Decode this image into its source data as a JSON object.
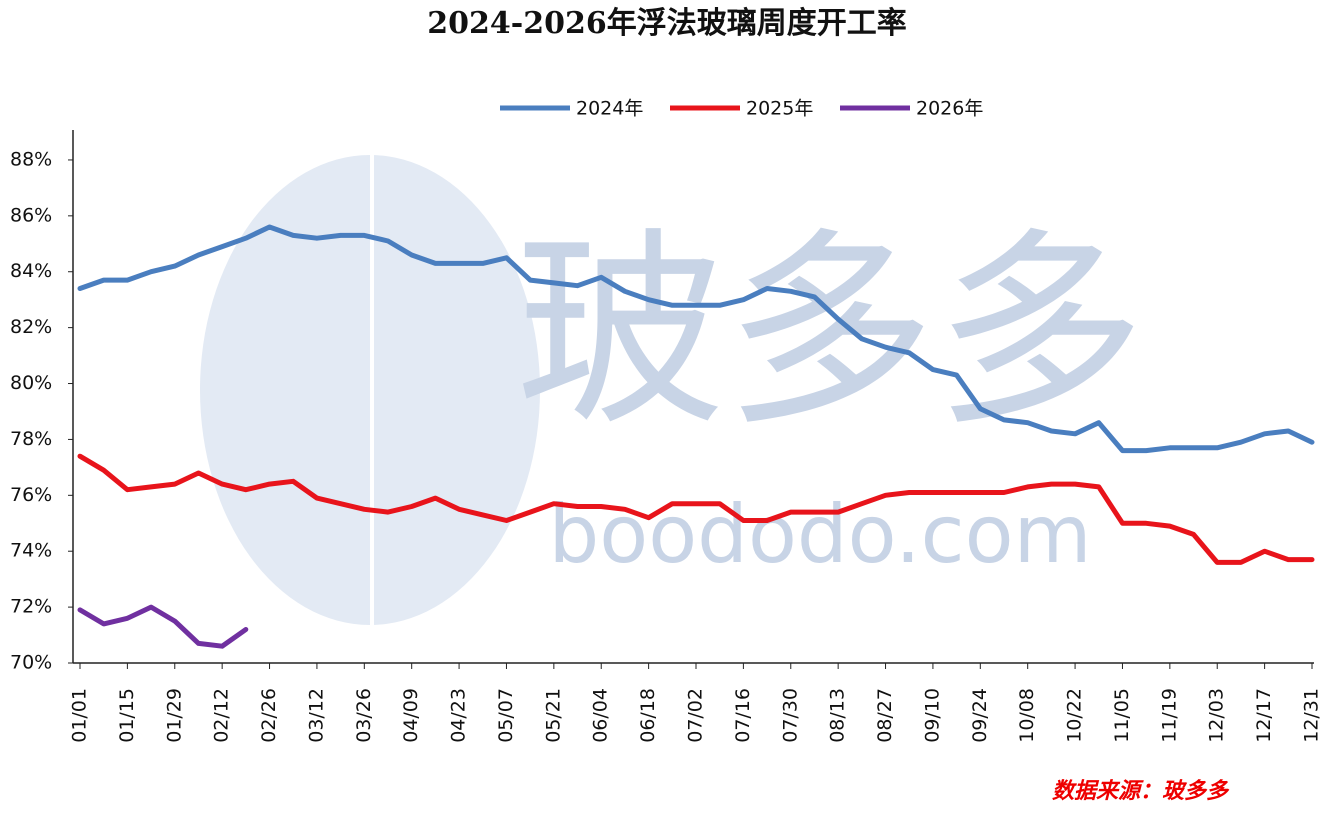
{
  "chart_data": {
    "type": "line",
    "title": "2024-2026年浮法玻璃周度开工率",
    "categories": [
      "01/01",
      null,
      "01/15",
      null,
      "01/29",
      null,
      "02/12",
      null,
      "02/26",
      null,
      "03/12",
      null,
      "03/26",
      null,
      "04/09",
      null,
      "04/23",
      null,
      "05/07",
      null,
      "05/21",
      null,
      "06/04",
      null,
      "06/18",
      null,
      "07/02",
      null,
      "07/16",
      null,
      "07/30",
      null,
      "08/13",
      null,
      "08/27",
      null,
      "09/10",
      null,
      "09/24",
      null,
      "10/08",
      null,
      "10/22",
      null,
      "11/05",
      null,
      "11/19",
      null,
      "12/03",
      null,
      "12/17",
      null,
      "12/31"
    ],
    "series": [
      {
        "name": "2024年",
        "color": "#4a7ebf",
        "values": [
          83.4,
          83.7,
          83.7,
          84.0,
          84.2,
          84.6,
          84.9,
          85.2,
          85.6,
          85.3,
          85.2,
          85.3,
          85.3,
          85.1,
          84.6,
          84.3,
          84.3,
          84.3,
          84.5,
          83.7,
          83.6,
          83.5,
          83.8,
          83.3,
          83.0,
          82.8,
          82.8,
          82.8,
          83.0,
          83.4,
          83.3,
          83.1,
          82.3,
          81.6,
          81.3,
          81.1,
          80.5,
          80.3,
          79.1,
          78.7,
          78.6,
          78.3,
          78.2,
          78.6,
          77.6,
          77.6,
          77.7,
          77.7,
          77.7,
          77.9,
          78.2,
          78.3,
          77.9
        ]
      },
      {
        "name": "2025年",
        "color": "#e8141b",
        "values": [
          77.4,
          76.9,
          76.2,
          76.3,
          76.4,
          76.8,
          76.4,
          76.2,
          76.4,
          76.5,
          75.9,
          75.7,
          75.5,
          75.4,
          75.6,
          75.9,
          75.5,
          75.3,
          75.1,
          75.4,
          75.7,
          75.6,
          75.6,
          75.5,
          75.2,
          75.7,
          75.7,
          75.7,
          75.1,
          75.1,
          75.4,
          75.4,
          75.4,
          75.7,
          76.0,
          76.1,
          76.1,
          76.1,
          76.1,
          76.1,
          76.3,
          76.4,
          76.4,
          76.3,
          75.0,
          75.0,
          74.9,
          74.6,
          73.6,
          73.6,
          74.0,
          73.7,
          73.7
        ]
      },
      {
        "name": "2026年",
        "color": "#7030a0",
        "values": [
          71.9,
          71.4,
          71.6,
          72.0,
          71.5,
          70.7,
          70.6,
          71.2,
          null,
          null,
          null,
          null,
          null,
          null,
          null,
          null,
          null,
          null,
          null,
          null,
          null,
          null,
          null,
          null,
          null,
          null,
          null,
          null,
          null,
          null,
          null,
          null,
          null,
          null,
          null,
          null,
          null,
          null,
          null,
          null,
          null,
          null,
          null,
          null,
          null,
          null,
          null,
          null,
          null,
          null,
          null,
          null,
          null
        ]
      }
    ],
    "ylim": [
      70,
      89
    ],
    "yticks": [
      {
        "value": 70,
        "label": "70%"
      },
      {
        "value": 72,
        "label": "72%"
      },
      {
        "value": 74,
        "label": "74%"
      },
      {
        "value": 76,
        "label": "76%"
      },
      {
        "value": 78,
        "label": "78%"
      },
      {
        "value": 80,
        "label": "80%"
      },
      {
        "value": 82,
        "label": "82%"
      },
      {
        "value": 84,
        "label": "84%"
      },
      {
        "value": 86,
        "label": "86%"
      },
      {
        "value": 88,
        "label": "88%"
      }
    ],
    "grid": false,
    "legend": "top",
    "watermark": {
      "logo": "玻多多",
      "url": "boododo.com"
    },
    "source": "数据来源：玻多多"
  }
}
